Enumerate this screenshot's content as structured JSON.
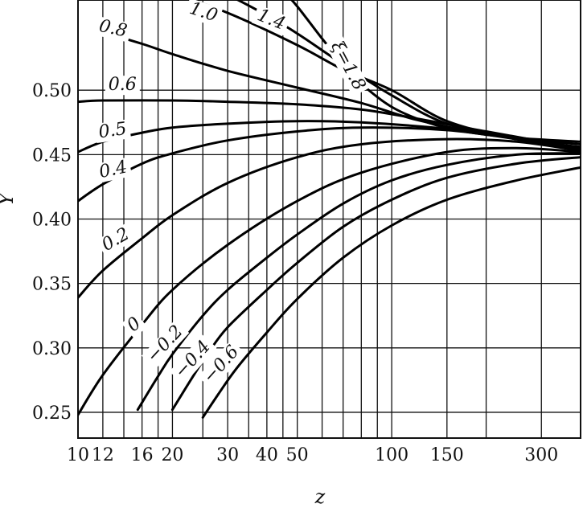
{
  "chart_data": {
    "type": "line",
    "title": "",
    "xlabel": "z",
    "ylabel": "Y",
    "x_scale": "log",
    "xlim": [
      10,
      400
    ],
    "ylim": [
      0.23,
      0.57
    ],
    "x_tick_labels": [
      {
        "value": 10,
        "label": "10"
      },
      {
        "value": 12,
        "label": "12"
      },
      {
        "value": 16,
        "label": "16"
      },
      {
        "value": 20,
        "label": "20"
      },
      {
        "value": 30,
        "label": "30"
      },
      {
        "value": 40,
        "label": "40"
      },
      {
        "value": 50,
        "label": "50"
      },
      {
        "value": 100,
        "label": "100"
      },
      {
        "value": 150,
        "label": "150"
      },
      {
        "value": 300,
        "label": "300"
      }
    ],
    "x_gridlines": [
      10,
      12,
      14,
      16,
      18,
      20,
      25,
      30,
      35,
      40,
      45,
      50,
      60,
      70,
      80,
      90,
      100,
      150,
      200,
      300,
      400
    ],
    "y_tick_labels": [
      {
        "value": 0.25,
        "label": "0.25"
      },
      {
        "value": 0.3,
        "label": "0.30"
      },
      {
        "value": 0.35,
        "label": "0.35"
      },
      {
        "value": 0.4,
        "label": "0.40"
      },
      {
        "value": 0.45,
        "label": "0.45"
      },
      {
        "value": 0.5,
        "label": "0.50"
      }
    ],
    "y_gridlines": [
      0.25,
      0.3,
      0.35,
      0.4,
      0.45,
      0.5
    ],
    "grid": true,
    "series": [
      {
        "name": "ξ=1.8",
        "label_at": [
          64,
          0.535
        ],
        "label_rotate": 62,
        "points": [
          [
            44,
            0.58
          ],
          [
            50,
            0.565
          ],
          [
            60,
            0.54
          ],
          [
            70,
            0.52
          ],
          [
            80,
            0.505
          ],
          [
            100,
            0.487
          ],
          [
            130,
            0.475
          ],
          [
            170,
            0.468
          ],
          [
            250,
            0.463
          ],
          [
            400,
            0.46
          ]
        ]
      },
      {
        "name": "1.4",
        "label_at": [
          37,
          0.555
        ],
        "label_rotate": 22,
        "points": [
          [
            26,
            0.58
          ],
          [
            30,
            0.574
          ],
          [
            40,
            0.558
          ],
          [
            50,
            0.544
          ],
          [
            70,
            0.52
          ],
          [
            100,
            0.496
          ],
          [
            150,
            0.474
          ],
          [
            250,
            0.463
          ],
          [
            400,
            0.458
          ]
        ]
      },
      {
        "name": "1.0",
        "label_at": [
          22.5,
          0.56
        ],
        "label_rotate": 18,
        "points": [
          [
            17,
            0.58
          ],
          [
            20,
            0.575
          ],
          [
            30,
            0.56
          ],
          [
            50,
            0.535
          ],
          [
            70,
            0.516
          ],
          [
            100,
            0.5
          ],
          [
            150,
            0.476
          ],
          [
            250,
            0.462
          ],
          [
            400,
            0.456
          ]
        ]
      },
      {
        "name": "0.8",
        "label_at": [
          11.6,
          0.546
        ],
        "label_rotate": 12,
        "points": [
          [
            12,
            0.545
          ],
          [
            16,
            0.536
          ],
          [
            20,
            0.528
          ],
          [
            30,
            0.515
          ],
          [
            50,
            0.502
          ],
          [
            80,
            0.49
          ],
          [
            120,
            0.477
          ],
          [
            200,
            0.466
          ],
          [
            400,
            0.455
          ]
        ]
      },
      {
        "name": "0.6",
        "label_at": [
          12.5,
          0.5
        ],
        "label_rotate": 0,
        "points": [
          [
            10,
            0.491
          ],
          [
            12,
            0.492
          ],
          [
            20,
            0.492
          ],
          [
            30,
            0.491
          ],
          [
            50,
            0.489
          ],
          [
            80,
            0.485
          ],
          [
            120,
            0.478
          ],
          [
            200,
            0.468
          ],
          [
            400,
            0.455
          ]
        ]
      },
      {
        "name": "0.5",
        "label_at": [
          11.7,
          0.463
        ],
        "label_rotate": -8,
        "points": [
          [
            10,
            0.452
          ],
          [
            12,
            0.46
          ],
          [
            16,
            0.467
          ],
          [
            20,
            0.471
          ],
          [
            30,
            0.474
          ],
          [
            50,
            0.476
          ],
          [
            80,
            0.475
          ],
          [
            150,
            0.47
          ],
          [
            250,
            0.463
          ],
          [
            400,
            0.455
          ]
        ]
      },
      {
        "name": "0.4",
        "label_at": [
          11.8,
          0.432
        ],
        "label_rotate": -12,
        "points": [
          [
            10,
            0.414
          ],
          [
            12,
            0.427
          ],
          [
            16,
            0.443
          ],
          [
            20,
            0.451
          ],
          [
            30,
            0.461
          ],
          [
            50,
            0.468
          ],
          [
            80,
            0.471
          ],
          [
            150,
            0.469
          ],
          [
            250,
            0.462
          ],
          [
            400,
            0.454
          ]
        ]
      },
      {
        "name": "0.2",
        "label_at": [
          12.3,
          0.375
        ],
        "label_rotate": -30,
        "points": [
          [
            10,
            0.339
          ],
          [
            12,
            0.36
          ],
          [
            16,
            0.385
          ],
          [
            20,
            0.403
          ],
          [
            30,
            0.428
          ],
          [
            50,
            0.448
          ],
          [
            80,
            0.458
          ],
          [
            150,
            0.462
          ],
          [
            250,
            0.46
          ],
          [
            400,
            0.453
          ]
        ]
      },
      {
        "name": "0",
        "label_at": [
          15,
          0.312
        ],
        "label_rotate": -40,
        "points": [
          [
            10,
            0.248
          ],
          [
            12,
            0.279
          ],
          [
            16,
            0.318
          ],
          [
            20,
            0.345
          ],
          [
            30,
            0.38
          ],
          [
            50,
            0.414
          ],
          [
            80,
            0.436
          ],
          [
            150,
            0.452
          ],
          [
            250,
            0.455
          ],
          [
            400,
            0.452
          ]
        ]
      },
      {
        "name": "−0.2",
        "label_at": [
          17.5,
          0.288
        ],
        "label_rotate": -47,
        "points": [
          [
            15.5,
            0.252
          ],
          [
            18,
            0.278
          ],
          [
            20,
            0.295
          ],
          [
            25,
            0.325
          ],
          [
            30,
            0.345
          ],
          [
            40,
            0.37
          ],
          [
            50,
            0.388
          ],
          [
            70,
            0.412
          ],
          [
            100,
            0.43
          ],
          [
            150,
            0.442
          ],
          [
            250,
            0.45
          ],
          [
            400,
            0.451
          ]
        ]
      },
      {
        "name": "−0.4",
        "label_at": [
          21.5,
          0.276
        ],
        "label_rotate": -48,
        "points": [
          [
            20,
            0.252
          ],
          [
            23,
            0.276
          ],
          [
            26,
            0.296
          ],
          [
            30,
            0.316
          ],
          [
            40,
            0.345
          ],
          [
            50,
            0.366
          ],
          [
            70,
            0.394
          ],
          [
            100,
            0.415
          ],
          [
            150,
            0.432
          ],
          [
            250,
            0.443
          ],
          [
            400,
            0.448
          ]
        ]
      },
      {
        "name": "−0.6",
        "label_at": [
          26.5,
          0.272
        ],
        "label_rotate": -48,
        "points": [
          [
            25,
            0.246
          ],
          [
            28,
            0.264
          ],
          [
            32,
            0.284
          ],
          [
            40,
            0.312
          ],
          [
            50,
            0.338
          ],
          [
            70,
            0.37
          ],
          [
            100,
            0.395
          ],
          [
            150,
            0.415
          ],
          [
            250,
            0.43
          ],
          [
            400,
            0.44
          ]
        ]
      }
    ]
  }
}
